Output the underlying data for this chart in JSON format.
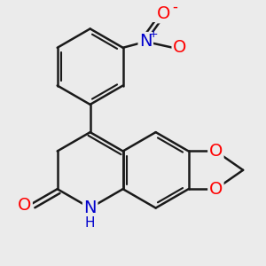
{
  "bg_color": "#ebebeb",
  "bond_color": "#1a1a1a",
  "bond_width": 1.8,
  "dbo": 0.05,
  "atom_colors": {
    "O": "#ff0000",
    "N": "#0000cd",
    "C": "#1a1a1a"
  },
  "font_size": 14,
  "font_size_small": 11
}
